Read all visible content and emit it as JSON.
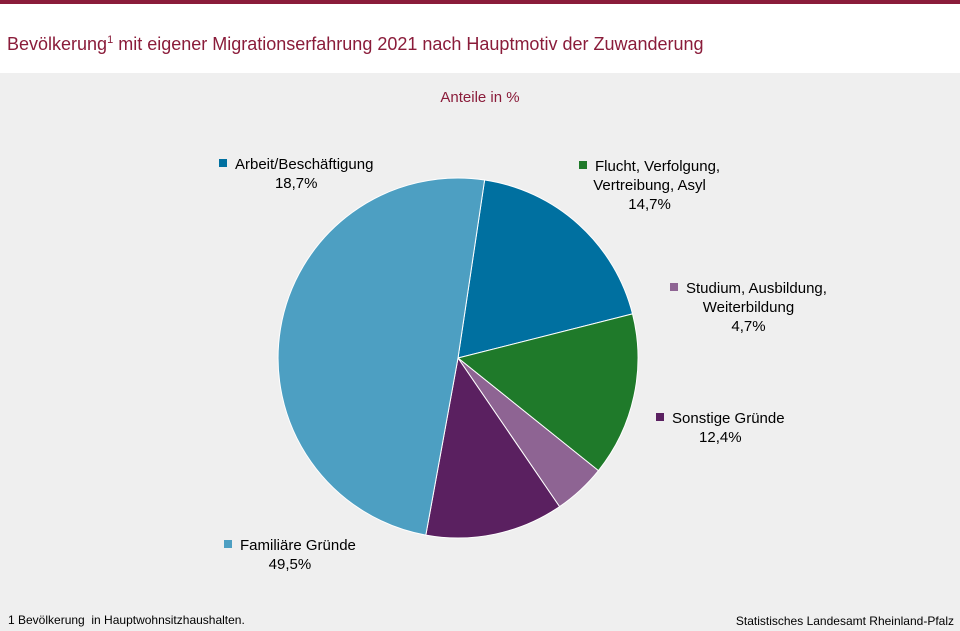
{
  "header": {
    "title_main": "Bevölkerung",
    "title_sup": "1",
    "title_rest": " mit eigener Migrationserfahrung 2021 nach Hauptmotiv der Zuwanderung"
  },
  "footer": {
    "footnote": "1 Bevölkerung  in Hauptwohnsitzhaushalten.",
    "source": "Statistisches Landesamt Rheinland-Pfalz"
  },
  "chart_data": {
    "type": "pie",
    "title": "Bevölkerung mit eigener Migrationserfahrung 2021 nach Hauptmotiv der Zuwanderung",
    "subtitle": "Anteile in %",
    "slices": [
      {
        "name": "Arbeit/Beschäftigung",
        "value": 18.7,
        "value_label": "18,7%",
        "color": "#0070a0",
        "lines": [
          "Arbeit/Beschäftigung"
        ]
      },
      {
        "name": "Flucht, Verfolgung, Vertreibung, Asyl",
        "value": 14.7,
        "value_label": "14,7%",
        "color": "#1f7a2a",
        "lines": [
          "Flucht,  Verfolgung,",
          "Vertreibung,  Asyl"
        ]
      },
      {
        "name": "Studium, Ausbildung, Weiterbildung",
        "value": 4.7,
        "value_label": "4,7%",
        "color": "#8e6493",
        "lines": [
          "Studium,  Ausbildung,",
          "Weiterbildung"
        ]
      },
      {
        "name": "Sonstige Gründe",
        "value": 12.4,
        "value_label": "12,4%",
        "color": "#5a2060",
        "lines": [
          "Sonstige Gründe"
        ]
      },
      {
        "name": "Familiäre Gründe",
        "value": 49.5,
        "value_label": "49,5%",
        "color": "#4d9fc2",
        "lines": [
          "Familiäre Gründe"
        ]
      }
    ]
  }
}
